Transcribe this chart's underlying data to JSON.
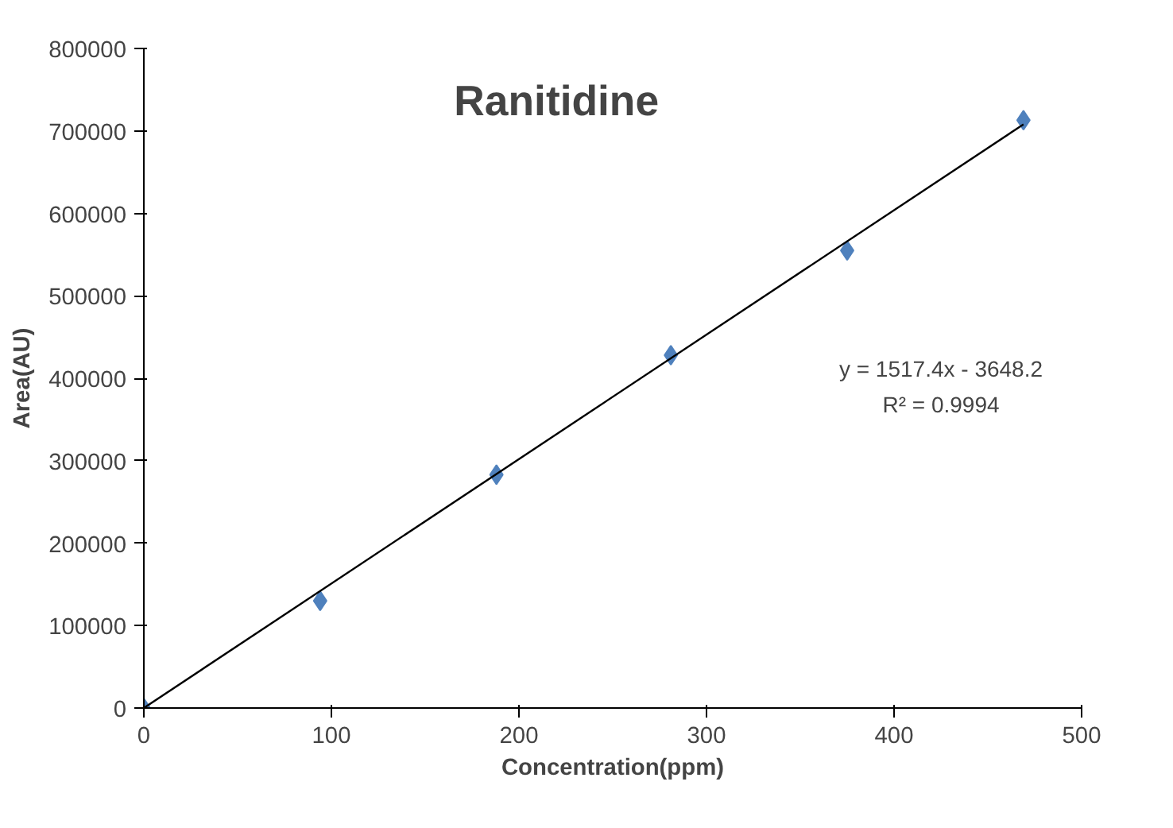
{
  "chart_data": {
    "type": "scatter",
    "title": "Ranitidine",
    "xlabel": "Concentration(ppm)",
    "ylabel": "Area(AU)",
    "xlim": [
      0,
      500
    ],
    "xticks": [
      0,
      100,
      200,
      300,
      400,
      500
    ],
    "ylim": [
      0,
      800000
    ],
    "yticks": [
      0,
      100000,
      200000,
      300000,
      400000,
      500000,
      600000,
      700000,
      800000
    ],
    "grid": false,
    "series": [
      {
        "marker": "diamond",
        "color": "#4f81bd",
        "x": [
          0,
          94,
          188,
          281,
          375,
          469
        ],
        "values": [
          0,
          130000,
          283000,
          428000,
          555000,
          713000
        ]
      },
      {
        "type": "line",
        "marker": "none",
        "color": "#000000",
        "x": [
          0,
          469
        ],
        "values": [
          0,
          708000
        ]
      }
    ],
    "annotations": [
      "y = 1517.4x - 3648.2",
      "R² = 0.9994"
    ]
  }
}
